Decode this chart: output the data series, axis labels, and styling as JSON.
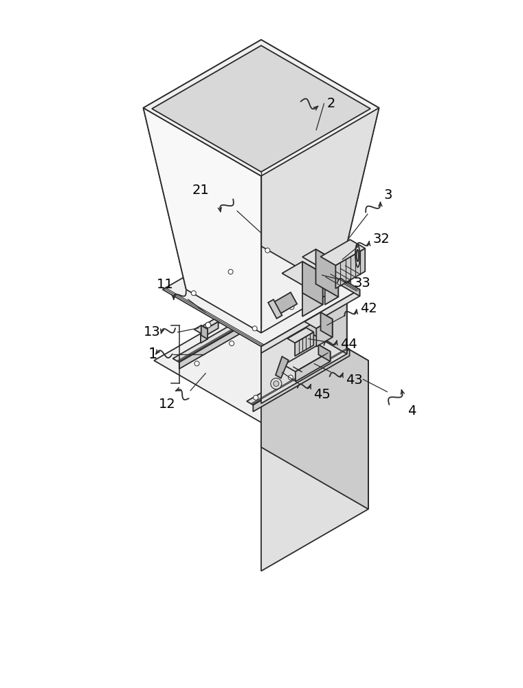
{
  "bg_color": "#ffffff",
  "line_color": "#2a2a2a",
  "lw_main": 1.3,
  "lw_thin": 0.8,
  "face_colors": {
    "white": "#ffffff",
    "light": "#f0f0f0",
    "mid": "#e0e0e0",
    "dark": "#cccccc",
    "darker": "#b8b8b8"
  },
  "labels": [
    "1",
    "2",
    "3",
    "4",
    "11",
    "12",
    "13",
    "21",
    "32",
    "33",
    "42",
    "43",
    "44",
    "45"
  ]
}
